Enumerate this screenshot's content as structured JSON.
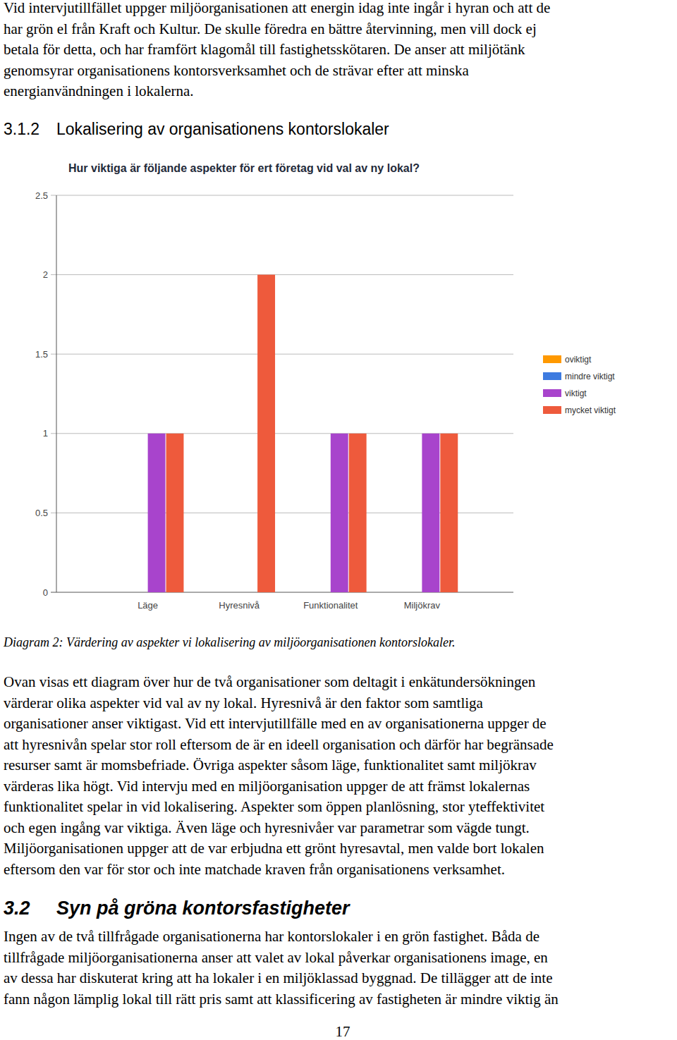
{
  "intro_paragraph": [
    "Vid intervjutillfället uppger miljöorganisationen att energin idag inte ingår i hyran och att de",
    "har grön el från Kraft och Kultur. De skulle föredra en bättre återvinning, men vill dock ej",
    "betala för detta, och har framfört klagomål till fastighetsskötaren. De anser att miljötänk",
    "genomsyrar organisationens kontorsverksamhet och de strävar efter att minska",
    "energianvändningen i lokalerna."
  ],
  "heading_312": {
    "number": "3.1.2",
    "title": "Lokalisering av organisationens kontorslokaler"
  },
  "chart_data": {
    "type": "bar",
    "title": "Hur viktiga är följande aspekter för ert företag vid val av ny lokal?",
    "categories": [
      "Läge",
      "Hyresnivå",
      "Funktionalitet",
      "Miljökrav"
    ],
    "series": [
      {
        "name": "oviktigt",
        "color": "#ff9900",
        "values": [
          0,
          0,
          0,
          0
        ]
      },
      {
        "name": "mindre viktigt",
        "color": "#3d7be0",
        "values": [
          0,
          0,
          0,
          0
        ]
      },
      {
        "name": "viktigt",
        "color": "#a844cc",
        "values": [
          1,
          0,
          1,
          1
        ]
      },
      {
        "name": "mycket viktigt",
        "color": "#ee5a3c",
        "values": [
          1,
          2,
          1,
          1
        ]
      }
    ],
    "ylim": [
      0,
      2.5
    ],
    "yticks": [
      0,
      0.5,
      1,
      1.5,
      2,
      2.5
    ],
    "grid": true,
    "legend": "right"
  },
  "caption": "Diagram 2: Värdering av aspekter vi lokalisering av miljöorganisationen kontorslokaler.",
  "body_paragraph": [
    "Ovan visas ett diagram över hur de två organisationer som deltagit i enkätundersökningen",
    "värderar olika aspekter vid val av ny lokal. Hyresnivå är den faktor som samtliga",
    "organisationer anser viktigast. Vid ett intervjutillfälle med en av organisationerna uppger de",
    "att hyresnivån spelar stor roll eftersom de är en ideell organisation och därför har begränsade",
    "resurser samt är momsbefriade. Övriga aspekter såsom läge, funktionalitet samt miljökrav",
    "värderas lika högt. Vid intervju med en miljöorganisation uppger de att främst lokalernas",
    "funktionalitet spelar in vid lokalisering. Aspekter som öppen planlösning, stor yteffektivitet",
    "och egen ingång var viktiga. Även läge och hyresnivåer var parametrar som vägde tungt.",
    "Miljöorganisationen uppger att de var erbjudna ett grönt hyresavtal, men valde bort lokalen",
    "eftersom den var för stor och inte matchade kraven från organisationens verksamhet."
  ],
  "heading_32": {
    "number": "3.2",
    "title": "Syn på gröna kontorsfastigheter"
  },
  "final_paragraph": [
    "Ingen av de två tillfrågade organisationerna har kontorslokaler i en grön fastighet. Båda de",
    "tillfrågade miljöorganisationerna anser att valet av lokal påverkar organisationens image, en",
    "av dessa har diskuterat kring att ha lokaler i en miljöklassad byggnad. De tillägger att de inte",
    "fann någon lämplig lokal till rätt pris samt att klassificering av fastigheten är mindre viktig än"
  ],
  "page_number": "17"
}
